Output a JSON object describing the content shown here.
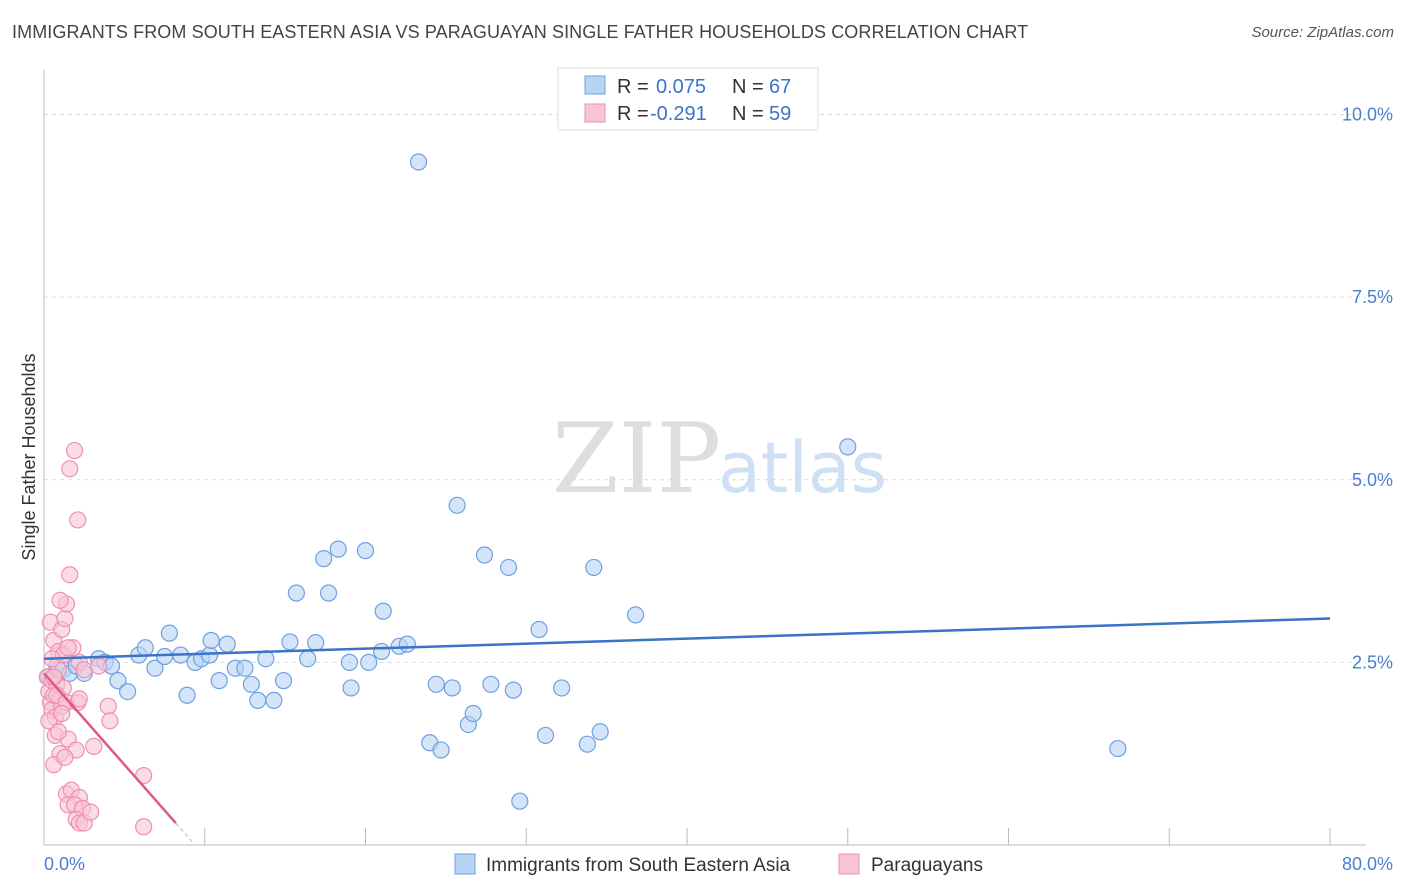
{
  "header": {
    "title": "IMMIGRANTS FROM SOUTH EASTERN ASIA VS PARAGUAYAN SINGLE FATHER HOUSEHOLDS CORRELATION CHART",
    "source": "Source: ZipAtlas.com"
  },
  "watermark": {
    "zip": "ZIP",
    "atlas": "atlas"
  },
  "legend": {
    "r_label": "R =",
    "n_label": "N =",
    "rows": [
      {
        "r": "0.075",
        "n": "67"
      },
      {
        "r": "-0.291",
        "n": "59"
      }
    ]
  },
  "bottom_legend": [
    "Immigrants from South Eastern Asia",
    "Paraguayans"
  ],
  "colors": {
    "blue": "#3b73c8",
    "blue_fill": "#b9d3f5",
    "blue_stroke": "#6fa0e0",
    "pink": "#e0578a",
    "pink_fill": "#f8c5d6",
    "pink_stroke": "#ef8fb2",
    "tick": "#4a7fcf",
    "grid": "#d9d9d9"
  },
  "chart_data": {
    "type": "scatter",
    "title": "IMMIGRANTS FROM SOUTH EASTERN ASIA VS PARAGUAYAN SINGLE FATHER HOUSEHOLDS CORRELATION CHART",
    "xlabel": "",
    "ylabel": "Single Father Households",
    "xlim": [
      0,
      80
    ],
    "ylim": [
      0,
      10.5
    ],
    "x_tick_labels": [
      "0.0%",
      "80.0%"
    ],
    "y_ticks": [
      2.5,
      5.0,
      7.5,
      10.0
    ],
    "y_tick_labels": [
      "2.5%",
      "5.0%",
      "7.5%",
      "10.0%"
    ],
    "series": [
      {
        "name": "Immigrants from South Eastern Asia",
        "r": 0.075,
        "n": 67,
        "trend": [
          [
            0,
            2.55
          ],
          [
            80,
            3.1
          ]
        ],
        "points": [
          [
            0.3,
            2.3
          ],
          [
            0.8,
            2.45
          ],
          [
            1.2,
            2.4
          ],
          [
            1.6,
            2.35
          ],
          [
            2.0,
            2.45
          ],
          [
            2.5,
            2.35
          ],
          [
            3.4,
            2.55
          ],
          [
            3.8,
            2.5
          ],
          [
            4.2,
            2.45
          ],
          [
            4.6,
            2.25
          ],
          [
            5.2,
            2.1
          ],
          [
            5.9,
            2.6
          ],
          [
            6.3,
            2.7
          ],
          [
            6.9,
            2.42
          ],
          [
            7.5,
            2.58
          ],
          [
            7.8,
            2.9
          ],
          [
            8.5,
            2.6
          ],
          [
            8.9,
            2.05
          ],
          [
            9.4,
            2.5
          ],
          [
            9.8,
            2.55
          ],
          [
            10.3,
            2.6
          ],
          [
            10.4,
            2.8
          ],
          [
            10.9,
            2.25
          ],
          [
            11.4,
            2.75
          ],
          [
            11.9,
            2.42
          ],
          [
            12.5,
            2.42
          ],
          [
            12.9,
            2.2
          ],
          [
            13.3,
            1.98
          ],
          [
            13.8,
            2.55
          ],
          [
            14.3,
            1.98
          ],
          [
            14.9,
            2.25
          ],
          [
            15.3,
            2.78
          ],
          [
            15.7,
            3.45
          ],
          [
            16.4,
            2.55
          ],
          [
            16.9,
            2.77
          ],
          [
            17.4,
            3.92
          ],
          [
            17.7,
            3.45
          ],
          [
            18.3,
            4.05
          ],
          [
            19.0,
            2.5
          ],
          [
            19.1,
            2.15
          ],
          [
            20.0,
            4.03
          ],
          [
            20.2,
            2.5
          ],
          [
            21.0,
            2.65
          ],
          [
            21.1,
            3.2
          ],
          [
            22.1,
            2.72
          ],
          [
            22.6,
            2.75
          ],
          [
            23.3,
            9.35
          ],
          [
            24.0,
            1.4
          ],
          [
            24.4,
            2.2
          ],
          [
            24.7,
            1.3
          ],
          [
            25.4,
            2.15
          ],
          [
            25.7,
            4.65
          ],
          [
            26.4,
            1.65
          ],
          [
            26.7,
            1.8
          ],
          [
            27.4,
            3.97
          ],
          [
            27.8,
            2.2
          ],
          [
            28.9,
            3.8
          ],
          [
            29.2,
            2.12
          ],
          [
            29.6,
            0.6
          ],
          [
            30.8,
            2.95
          ],
          [
            31.2,
            1.5
          ],
          [
            32.2,
            2.15
          ],
          [
            33.8,
            1.38
          ],
          [
            34.2,
            3.8
          ],
          [
            34.6,
            1.55
          ],
          [
            36.8,
            3.15
          ],
          [
            50.0,
            5.45
          ],
          [
            66.8,
            1.32
          ]
        ]
      },
      {
        "name": "Paraguayans",
        "r": -0.291,
        "n": 59,
        "trend": [
          [
            0,
            2.35
          ],
          [
            8.2,
            0.3
          ]
        ],
        "trend_dashed": [
          [
            8.2,
            0.3
          ],
          [
            9.2,
            0.05
          ]
        ],
        "points": [
          [
            0.2,
            2.3
          ],
          [
            0.3,
            2.1
          ],
          [
            0.4,
            1.95
          ],
          [
            0.5,
            2.25
          ],
          [
            0.5,
            1.85
          ],
          [
            0.6,
            2.05
          ],
          [
            0.7,
            1.75
          ],
          [
            0.8,
            2.2
          ],
          [
            0.9,
            2.4
          ],
          [
            1.0,
            2.0
          ],
          [
            1.1,
            1.9
          ],
          [
            1.2,
            2.15
          ],
          [
            0.4,
            3.05
          ],
          [
            0.6,
            2.8
          ],
          [
            0.9,
            2.65
          ],
          [
            1.1,
            2.95
          ],
          [
            1.3,
            3.1
          ],
          [
            1.4,
            3.3
          ],
          [
            1.6,
            3.7
          ],
          [
            1.9,
            5.4
          ],
          [
            1.8,
            2.7
          ],
          [
            2.2,
            2.5
          ],
          [
            2.5,
            2.4
          ],
          [
            1.2,
            2.6
          ],
          [
            1.5,
            2.7
          ],
          [
            1.6,
            5.15
          ],
          [
            2.1,
            4.45
          ],
          [
            1.0,
            3.35
          ],
          [
            0.6,
            2.3
          ],
          [
            0.8,
            2.05
          ],
          [
            1.4,
            1.95
          ],
          [
            2.1,
            1.95
          ],
          [
            2.2,
            2.0
          ],
          [
            0.7,
            1.5
          ],
          [
            1.0,
            1.25
          ],
          [
            0.6,
            1.1
          ],
          [
            1.5,
            1.45
          ],
          [
            2.0,
            1.3
          ],
          [
            3.1,
            1.35
          ],
          [
            4.0,
            1.9
          ],
          [
            4.1,
            1.7
          ],
          [
            3.4,
            2.45
          ],
          [
            1.4,
            0.7
          ],
          [
            1.7,
            0.75
          ],
          [
            2.2,
            0.65
          ],
          [
            1.5,
            0.55
          ],
          [
            1.9,
            0.55
          ],
          [
            2.4,
            0.5
          ],
          [
            2.0,
            0.35
          ],
          [
            2.2,
            0.3
          ],
          [
            2.5,
            0.3
          ],
          [
            2.9,
            0.45
          ],
          [
            6.2,
            0.95
          ],
          [
            6.2,
            0.25
          ],
          [
            0.3,
            1.7
          ],
          [
            0.9,
            1.55
          ],
          [
            1.3,
            1.2
          ],
          [
            0.5,
            2.55
          ],
          [
            1.1,
            1.8
          ]
        ]
      }
    ]
  }
}
